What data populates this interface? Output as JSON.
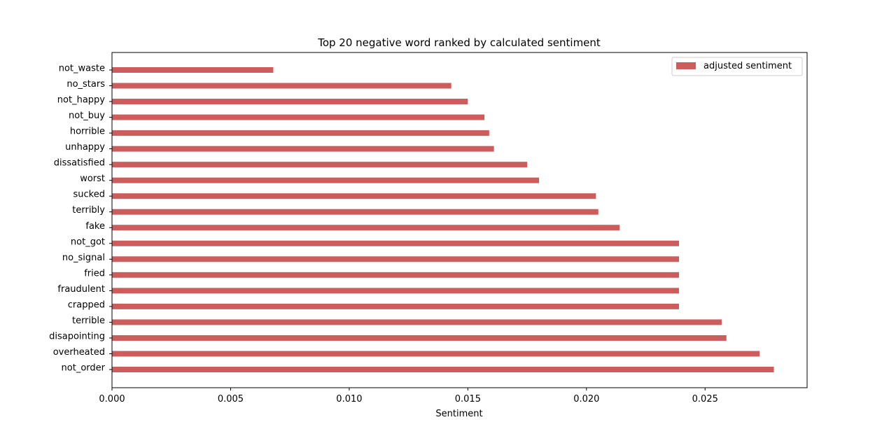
{
  "chart_data": {
    "type": "bar",
    "orientation": "horizontal",
    "title": "Top 20 negative word ranked by calculated sentiment",
    "xlabel": "Sentiment",
    "ylabel": "",
    "xlim": [
      0,
      0.0293
    ],
    "xticks": [
      "0.000",
      "0.005",
      "0.010",
      "0.015",
      "0.020",
      "0.025"
    ],
    "xtick_values": [
      0,
      0.005,
      0.01,
      0.015,
      0.02,
      0.025
    ],
    "grid": false,
    "legend_position": "top-right",
    "categories": [
      "not_order",
      "overheated",
      "disapointing",
      "terrible",
      "crapped",
      "fraudulent",
      "fried",
      "no_signal",
      "not_got",
      "fake",
      "terribly",
      "sucked",
      "worst",
      "dissatisfied",
      "unhappy",
      "horrible",
      "not_buy",
      "not_happy",
      "no_stars",
      "not_waste"
    ],
    "series": [
      {
        "name": "adjusted sentiment",
        "color": "#cd5c5c",
        "values": [
          0.0279,
          0.0273,
          0.0259,
          0.0257,
          0.0239,
          0.0239,
          0.0239,
          0.0239,
          0.0239,
          0.0214,
          0.0205,
          0.0204,
          0.018,
          0.0175,
          0.0161,
          0.0159,
          0.0157,
          0.015,
          0.0143,
          0.0068
        ]
      }
    ]
  }
}
